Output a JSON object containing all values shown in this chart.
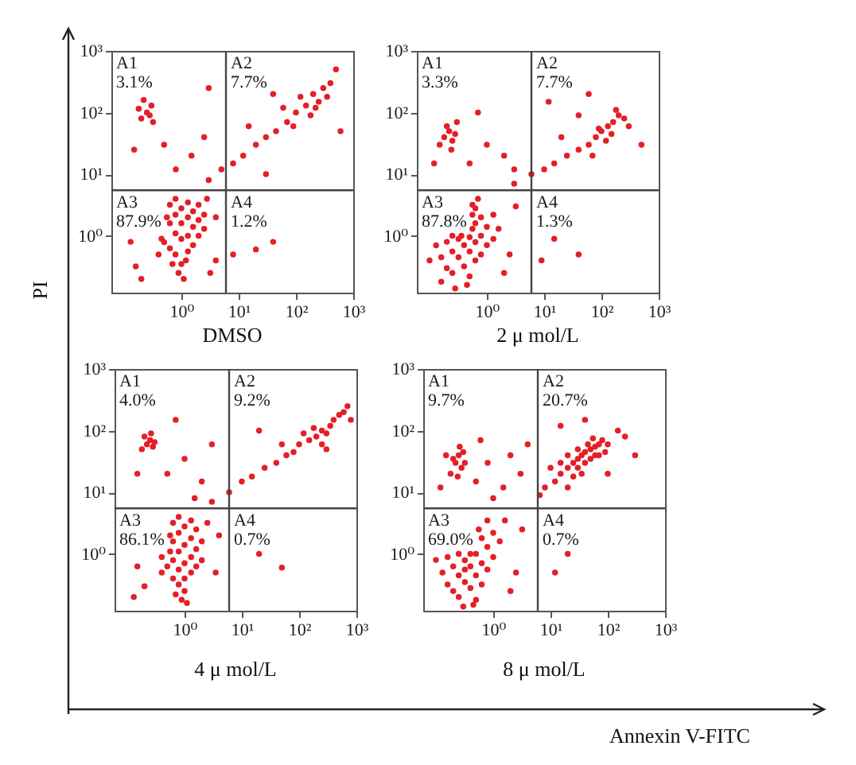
{
  "chart_data": [
    {
      "type": "scatter",
      "title": "DMSO",
      "ylabel": "PI",
      "color": "#e41f26",
      "marker": "circle",
      "log": "xy",
      "xlim": [
        0.06,
        1000
      ],
      "ylim": [
        0.12,
        1000
      ],
      "xticks": [
        {
          "value": 1,
          "label": "10⁰"
        },
        {
          "value": 10,
          "label": "10¹"
        },
        {
          "value": 100,
          "label": "10²"
        },
        {
          "value": 1000,
          "label": "10³"
        }
      ],
      "yticks": [
        {
          "value": 1,
          "label": "10⁰"
        },
        {
          "value": 10,
          "label": "10¹"
        },
        {
          "value": 100,
          "label": "10²"
        },
        {
          "value": 1000,
          "label": "10³"
        }
      ],
      "ref_lines": [
        {
          "axis": "x",
          "value": 6,
          "color": "#444444"
        },
        {
          "axis": "y",
          "value": 5.5,
          "color": "#444444"
        }
      ],
      "annotations": [
        "A1",
        "3.1%",
        "A2",
        "7.7%",
        "A3",
        "87.9%",
        "A4",
        "1.2%"
      ],
      "x": [
        0.56,
        0.5,
        0.63,
        0.63,
        0.63,
        0.79,
        0.79,
        0.79,
        0.79,
        1,
        1,
        1,
        1,
        1.3,
        1.3,
        1.3,
        1.3,
        1.6,
        1.6,
        1.6,
        2,
        2,
        2,
        2.5,
        2.5,
        0.89,
        1.1,
        0.45,
        2.8,
        0.4,
        1.2,
        0.7,
        0.13,
        0.16,
        4,
        4,
        0.2,
        3.2,
        0.25,
        0.2,
        0.3,
        0.32,
        0.22,
        0.28,
        0.18,
        0.5,
        1.5,
        0.8,
        2.5,
        0.15,
        3,
        3,
        5,
        8,
        12,
        20,
        30,
        45,
        70,
        60,
        100,
        150,
        200,
        250,
        180,
        300,
        120,
        220,
        400,
        90,
        350,
        40,
        15,
        600,
        30,
        500,
        40,
        20,
        8
      ],
      "values": [
        2,
        0.79,
        3.2,
        1.6,
        0.63,
        4,
        2.2,
        1.1,
        0.5,
        2.8,
        1.6,
        0.89,
        0.35,
        3.5,
        2,
        1,
        0.56,
        2.5,
        1.4,
        0.71,
        3.2,
        1.8,
        1,
        2.2,
        1.3,
        0.25,
        0.2,
        0.9,
        4,
        0.5,
        0.4,
        0.35,
        0.8,
        0.32,
        0.4,
        2,
        0.2,
        0.25,
        100,
        80,
        130,
        70,
        160,
        90,
        115,
        30,
        20,
        12,
        40,
        25,
        250,
        8,
        12,
        15,
        20,
        30,
        40,
        50,
        70,
        120,
        100,
        130,
        200,
        150,
        90,
        250,
        180,
        120,
        300,
        60,
        180,
        200,
        60,
        50,
        10,
        500,
        0.8,
        0.6,
        0.5
      ]
    },
    {
      "type": "scatter",
      "title": "2 μ mol/L",
      "color": "#e41f26",
      "marker": "circle",
      "log": "xy",
      "xlim": [
        0.06,
        1000
      ],
      "ylim": [
        0.12,
        1000
      ],
      "xticks": [
        {
          "value": 1,
          "label": "10⁰"
        },
        {
          "value": 10,
          "label": "10¹"
        },
        {
          "value": 100,
          "label": "10²"
        },
        {
          "value": 1000,
          "label": "10³"
        }
      ],
      "yticks": [
        {
          "value": 1,
          "label": "10⁰"
        },
        {
          "value": 10,
          "label": "10¹"
        },
        {
          "value": 100,
          "label": "10²"
        },
        {
          "value": 1000,
          "label": "10³"
        }
      ],
      "ref_lines": [
        {
          "axis": "x",
          "value": 6,
          "color": "#444444"
        },
        {
          "axis": "y",
          "value": 5.5,
          "color": "#444444"
        }
      ],
      "annotations": [
        "A1",
        "3.3%",
        "A2",
        "7.7%",
        "A3",
        "87.8%",
        "A4",
        "1.3%"
      ],
      "x": [
        0.13,
        0.16,
        0.2,
        0.2,
        0.25,
        0.25,
        0.25,
        0.36,
        0.32,
        0.32,
        0.56,
        0.56,
        0.4,
        0.4,
        0.56,
        0.5,
        0.5,
        0.5,
        0.63,
        0.63,
        0.63,
        0.63,
        0.79,
        0.79,
        0.79,
        1,
        1,
        1.3,
        1.3,
        1.6,
        0.7,
        0.16,
        0.45,
        0.28,
        2.5,
        3.2,
        0.1,
        2,
        0.18,
        0.22,
        0.25,
        0.2,
        0.28,
        0.15,
        0.24,
        0.3,
        0.5,
        1,
        2,
        0.7,
        3,
        0.12,
        3,
        6,
        10,
        15,
        25,
        40,
        60,
        80,
        100,
        130,
        160,
        120,
        200,
        90,
        150,
        250,
        180,
        70,
        300,
        40,
        20,
        12,
        500,
        60,
        15,
        40,
        9
      ],
      "values": [
        0.7,
        0.45,
        0.8,
        0.3,
        1,
        0.56,
        0.25,
        1,
        0.89,
        0.45,
        3.2,
        1.3,
        0.71,
        0.32,
        2.2,
        0.95,
        0.56,
        0.22,
        2.8,
        1.6,
        0.79,
        0.4,
        2,
        1,
        0.5,
        1.4,
        0.71,
        2.2,
        0.89,
        1.3,
        4,
        0.18,
        0.16,
        0.14,
        0.5,
        3,
        0.4,
        0.25,
        40,
        50,
        35,
        60,
        45,
        30,
        25,
        70,
        15,
        30,
        20,
        100,
        12,
        15,
        7,
        10,
        12,
        15,
        20,
        25,
        30,
        40,
        50,
        60,
        70,
        35,
        90,
        55,
        45,
        80,
        110,
        20,
        60,
        90,
        40,
        150,
        30,
        200,
        0.9,
        0.5,
        0.4
      ]
    },
    {
      "type": "scatter",
      "title": "4 μ mol/L",
      "color": "#e41f26",
      "marker": "circle",
      "log": "xy",
      "xlim": [
        0.06,
        1000
      ],
      "ylim": [
        0.12,
        1000
      ],
      "xticks": [
        {
          "value": 1,
          "label": "10⁰"
        },
        {
          "value": 10,
          "label": "10¹"
        },
        {
          "value": 100,
          "label": "10²"
        },
        {
          "value": 1000,
          "label": "10³"
        }
      ],
      "yticks": [
        {
          "value": 1,
          "label": "10⁰"
        },
        {
          "value": 10,
          "label": "10¹"
        },
        {
          "value": 100,
          "label": "10²"
        },
        {
          "value": 1000,
          "label": "10³"
        }
      ],
      "ref_lines": [
        {
          "axis": "x",
          "value": 6,
          "color": "#444444"
        },
        {
          "axis": "y",
          "value": 5.5,
          "color": "#444444"
        }
      ],
      "annotations": [
        "A1",
        "4.0%",
        "A2",
        "9.2%",
        "A3",
        "86.1%",
        "A4",
        "0.7%"
      ],
      "x": [
        0.4,
        0.4,
        0.56,
        0.56,
        0.5,
        0.63,
        0.63,
        0.63,
        0.63,
        0.79,
        0.79,
        0.79,
        0.79,
        0.79,
        1,
        1,
        1,
        1,
        1,
        1.3,
        1.3,
        1.3,
        1.3,
        1.6,
        1.6,
        1.6,
        2,
        2,
        0.89,
        1.1,
        0.7,
        2.5,
        0.15,
        0.2,
        3.5,
        4,
        0.13,
        0.22,
        0.25,
        0.28,
        0.2,
        0.3,
        0.18,
        0.26,
        0.5,
        1,
        2,
        0.7,
        3,
        0.15,
        1.5,
        3,
        6,
        10,
        15,
        25,
        40,
        60,
        80,
        100,
        150,
        200,
        250,
        300,
        350,
        400,
        500,
        250,
        180,
        600,
        700,
        120,
        300,
        50,
        20,
        800,
        20,
        50
      ],
      "values": [
        0.89,
        0.5,
        2,
        1.1,
        0.63,
        3.2,
        1.6,
        0.79,
        0.4,
        4,
        2.2,
        1.1,
        0.56,
        0.32,
        2.8,
        1.4,
        0.71,
        0.4,
        0.25,
        3.5,
        1.8,
        0.89,
        0.5,
        2.5,
        1.2,
        0.63,
        1.6,
        0.79,
        0.18,
        0.16,
        0.22,
        3.2,
        0.63,
        0.3,
        0.5,
        2,
        0.2,
        60,
        70,
        55,
        80,
        65,
        50,
        90,
        20,
        35,
        15,
        150,
        60,
        20,
        8,
        7,
        10,
        15,
        18,
        25,
        30,
        40,
        45,
        60,
        70,
        80,
        100,
        90,
        120,
        150,
        180,
        60,
        110,
        200,
        250,
        90,
        50,
        60,
        100,
        150,
        1,
        0.6
      ]
    },
    {
      "type": "scatter",
      "title": "8 μ mol/L",
      "xlabel": "Annexin V-FITC",
      "color": "#e41f26",
      "marker": "circle",
      "log": "xy",
      "xlim": [
        0.06,
        1000
      ],
      "ylim": [
        0.12,
        1000
      ],
      "xticks": [
        {
          "value": 1,
          "label": "10⁰"
        },
        {
          "value": 10,
          "label": "10¹"
        },
        {
          "value": 100,
          "label": "10²"
        },
        {
          "value": 1000,
          "label": "10³"
        }
      ],
      "yticks": [
        {
          "value": 1,
          "label": "10⁰"
        },
        {
          "value": 10,
          "label": "10¹"
        },
        {
          "value": 100,
          "label": "10²"
        },
        {
          "value": 1000,
          "label": "10³"
        }
      ],
      "ref_lines": [
        {
          "axis": "x",
          "value": 6,
          "color": "#444444"
        },
        {
          "axis": "y",
          "value": 5.5,
          "color": "#444444"
        }
      ],
      "annotations": [
        "A1",
        "9.7%",
        "A2",
        "20.7%",
        "A3",
        "69.0%",
        "A4",
        "0.7%"
      ],
      "x": [
        0.1,
        0.13,
        0.16,
        0.16,
        0.2,
        0.2,
        0.25,
        0.25,
        0.25,
        0.32,
        0.32,
        0.32,
        0.4,
        0.4,
        0.4,
        0.56,
        0.5,
        0.5,
        0.5,
        0.63,
        0.63,
        0.63,
        0.79,
        0.79,
        1,
        1,
        0.79,
        0.45,
        0.3,
        1.3,
        2.5,
        3.2,
        2,
        1.6,
        0.22,
        0.25,
        0.28,
        0.2,
        0.3,
        0.18,
        0.26,
        0.32,
        0.24,
        0.15,
        0.5,
        0.8,
        1.5,
        2,
        3,
        0.6,
        1,
        4,
        0.12,
        12,
        15,
        20,
        25,
        30,
        35,
        40,
        50,
        60,
        70,
        20,
        30,
        40,
        50,
        25,
        15,
        60,
        80,
        100,
        45,
        35,
        10,
        8,
        70,
        30,
        90,
        20,
        55,
        6.5,
        150,
        200,
        15,
        40,
        300,
        100,
        20,
        12
      ],
      "values": [
        0.8,
        0.5,
        0.89,
        0.32,
        0.63,
        0.25,
        1,
        0.45,
        0.2,
        0.56,
        0.79,
        0.35,
        1,
        0.63,
        0.28,
        2.5,
        1,
        0.45,
        0.18,
        1.8,
        0.71,
        0.32,
        1.3,
        0.56,
        0.89,
        2.2,
        3.5,
        0.15,
        0.14,
        1.6,
        0.5,
        2.5,
        0.25,
        3.5,
        30,
        40,
        25,
        35,
        45,
        20,
        55,
        30,
        18,
        40,
        15,
        30,
        12,
        40,
        20,
        70,
        8,
        60,
        12,
        15,
        20,
        25,
        30,
        35,
        40,
        45,
        50,
        55,
        60,
        40,
        25,
        30,
        35,
        18,
        30,
        40,
        70,
        60,
        60,
        20,
        25,
        12,
        40,
        50,
        45,
        12,
        75,
        9,
        100,
        80,
        120,
        150,
        40,
        20,
        1,
        0.5
      ]
    }
  ]
}
